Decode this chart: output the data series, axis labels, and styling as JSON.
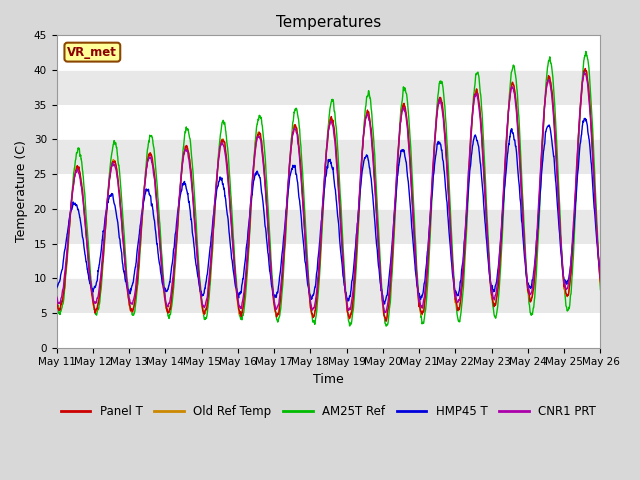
{
  "title": "Temperatures",
  "xlabel": "Time",
  "ylabel": "Temperature (C)",
  "ylim": [
    0,
    45
  ],
  "num_days": 15,
  "xtick_labels": [
    "May 11",
    "May 12",
    "May 13",
    "May 14",
    "May 15",
    "May 16",
    "May 17",
    "May 18",
    "May 19",
    "May 20",
    "May 21",
    "May 22",
    "May 23",
    "May 24",
    "May 25",
    "May 26"
  ],
  "yticks": [
    0,
    5,
    10,
    15,
    20,
    25,
    30,
    35,
    40,
    45
  ],
  "series_colors": {
    "Panel T": "#cc0000",
    "Old Ref Temp": "#cc8800",
    "AM25T Ref": "#00bb00",
    "HMP45 T": "#0000dd",
    "CNR1 PRT": "#aa00aa"
  },
  "annotation_text": "VR_met",
  "fig_bg_color": "#d8d8d8",
  "plot_bg_color": "#e8e8e8",
  "grid_color": "#ffffff",
  "band_color_light": "#f0f0f0",
  "band_color_dark": "#e0e0e0",
  "title_fontsize": 11,
  "axis_label_fontsize": 9,
  "tick_fontsize": 7.5,
  "legend_fontsize": 8.5
}
